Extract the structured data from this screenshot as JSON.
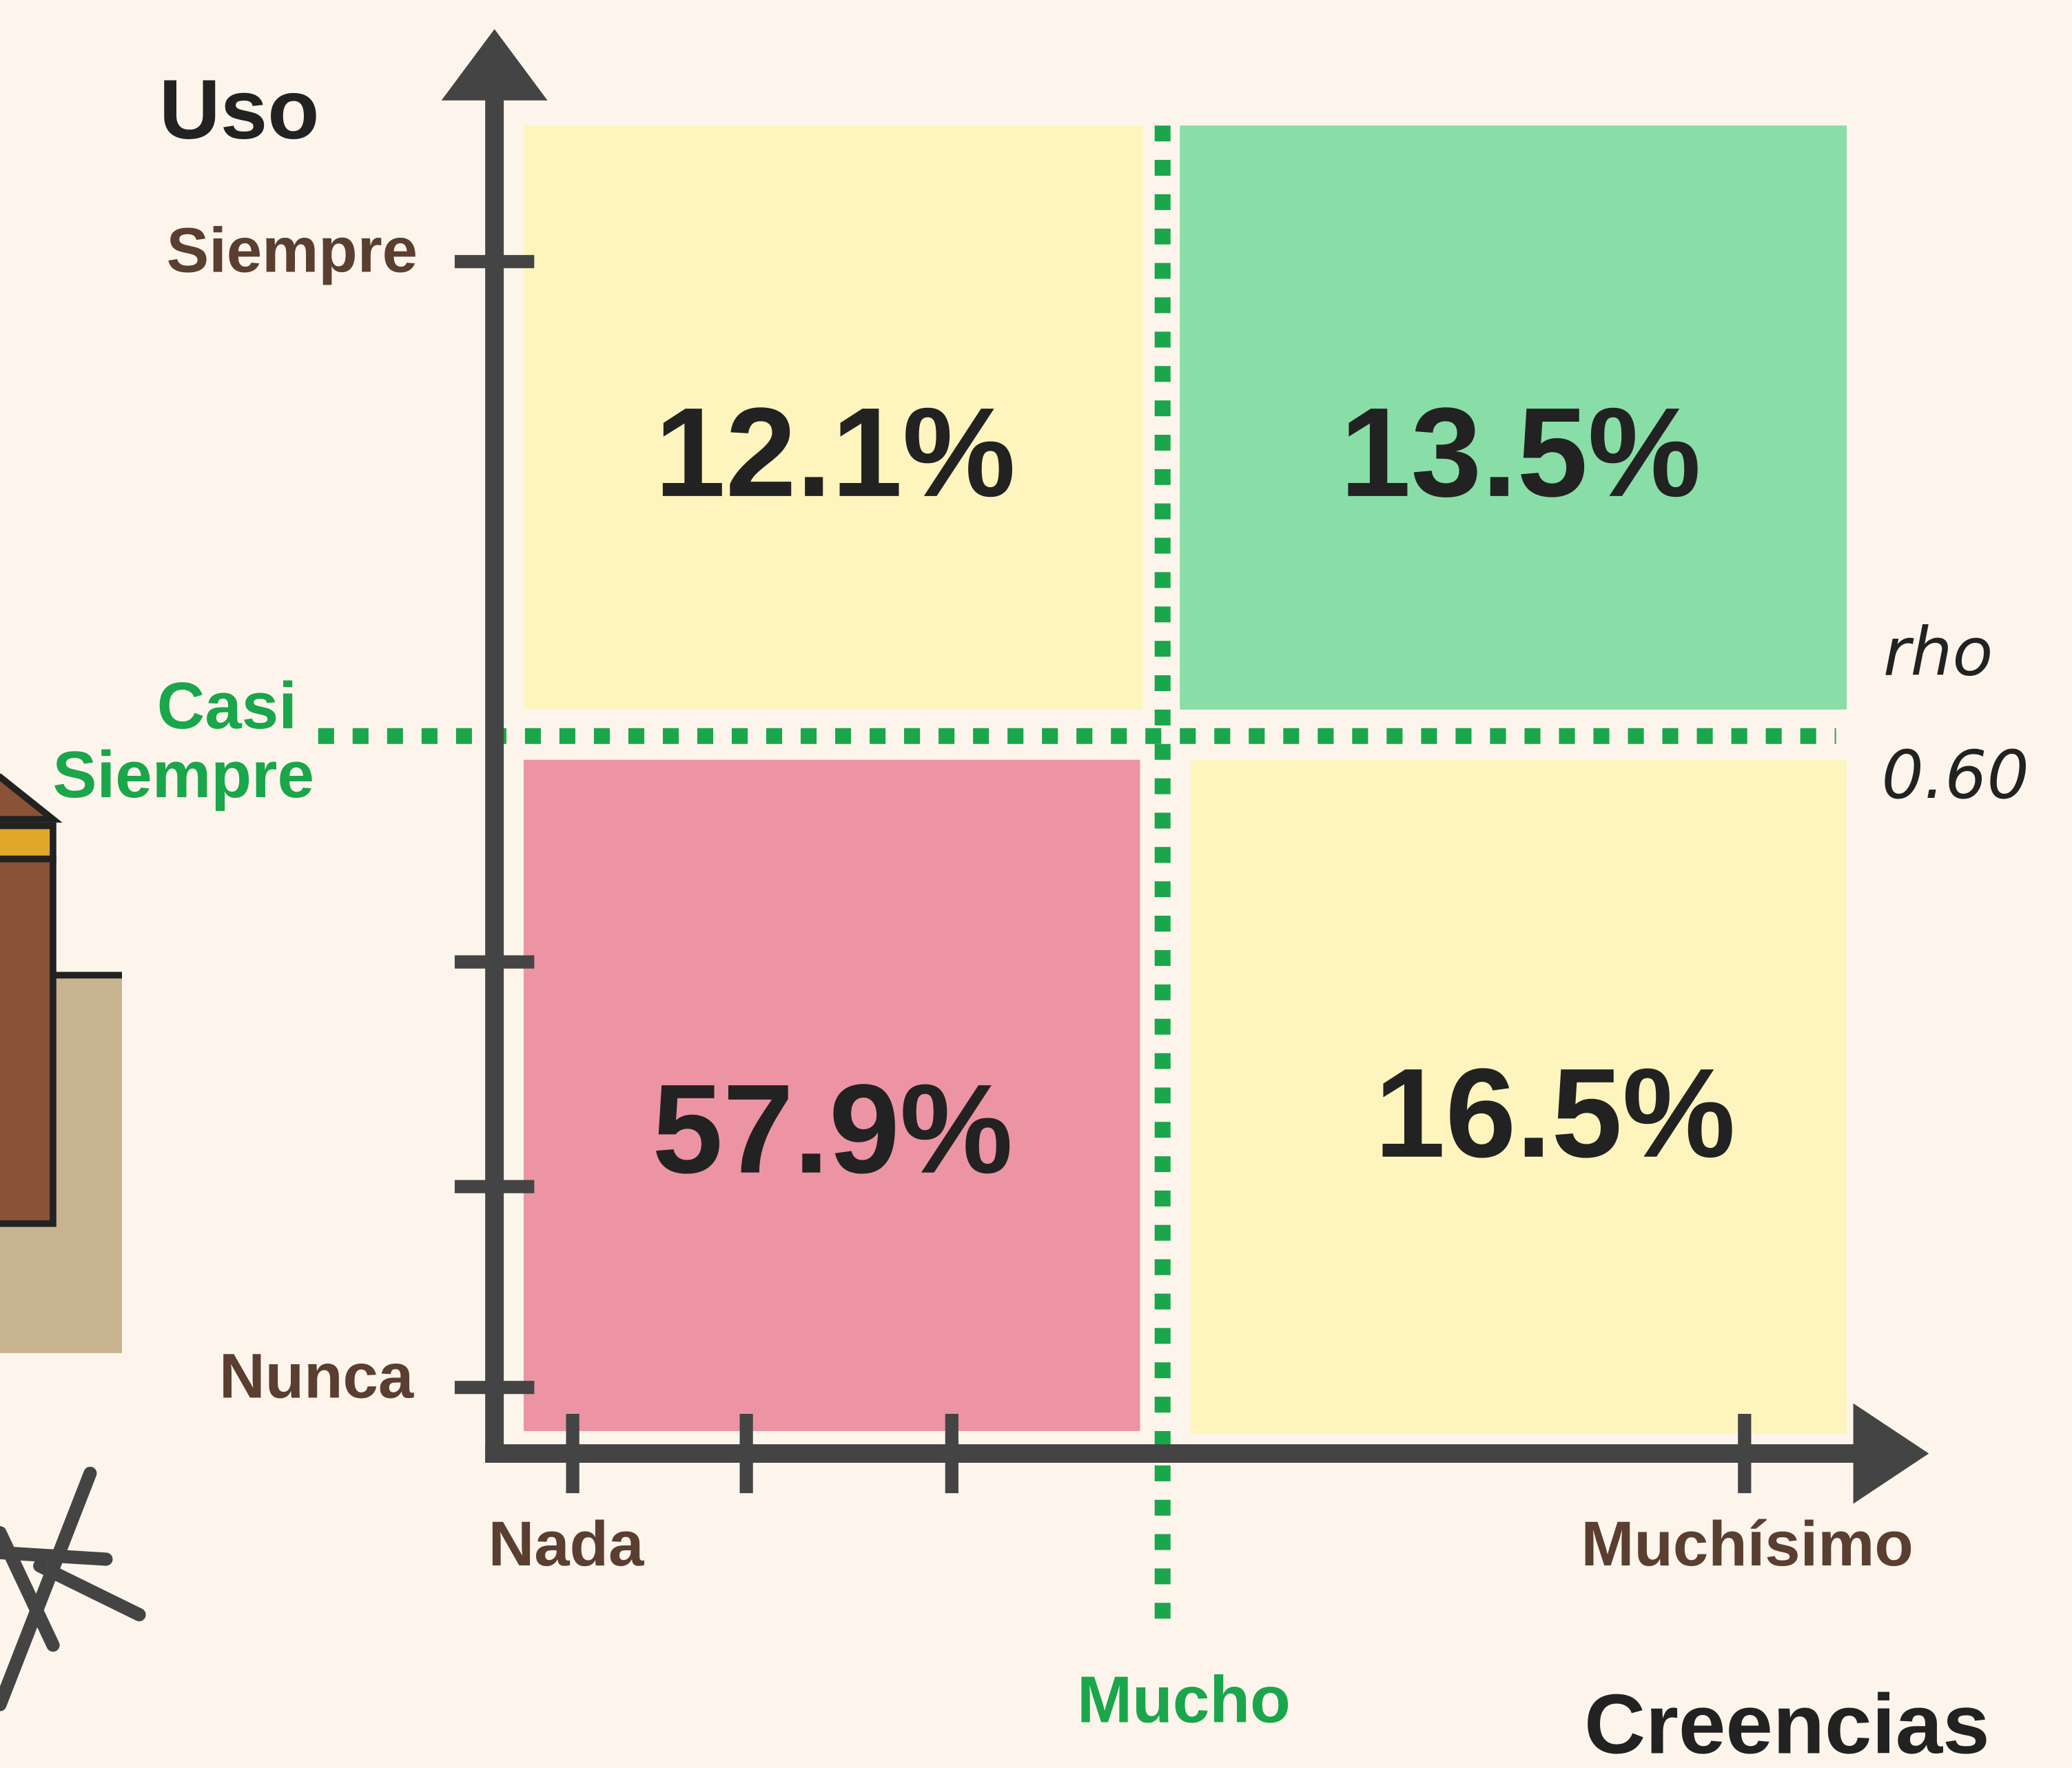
{
  "y_axis": {
    "title": "Uso",
    "top": "Siempre",
    "bottom": "Nunca",
    "threshold": [
      "Casi",
      "Siempre"
    ]
  },
  "x_axis": {
    "title": "Creencias",
    "left": "Nada",
    "right": "Muchísimo",
    "threshold": "Mucho"
  },
  "quadrants": {
    "top_left": "12.1%",
    "top_right": "13.5%",
    "bottom_left": "57.9%",
    "bottom_right": "16.5%"
  },
  "annotation": {
    "label": "rho",
    "value": "0.60"
  }
}
